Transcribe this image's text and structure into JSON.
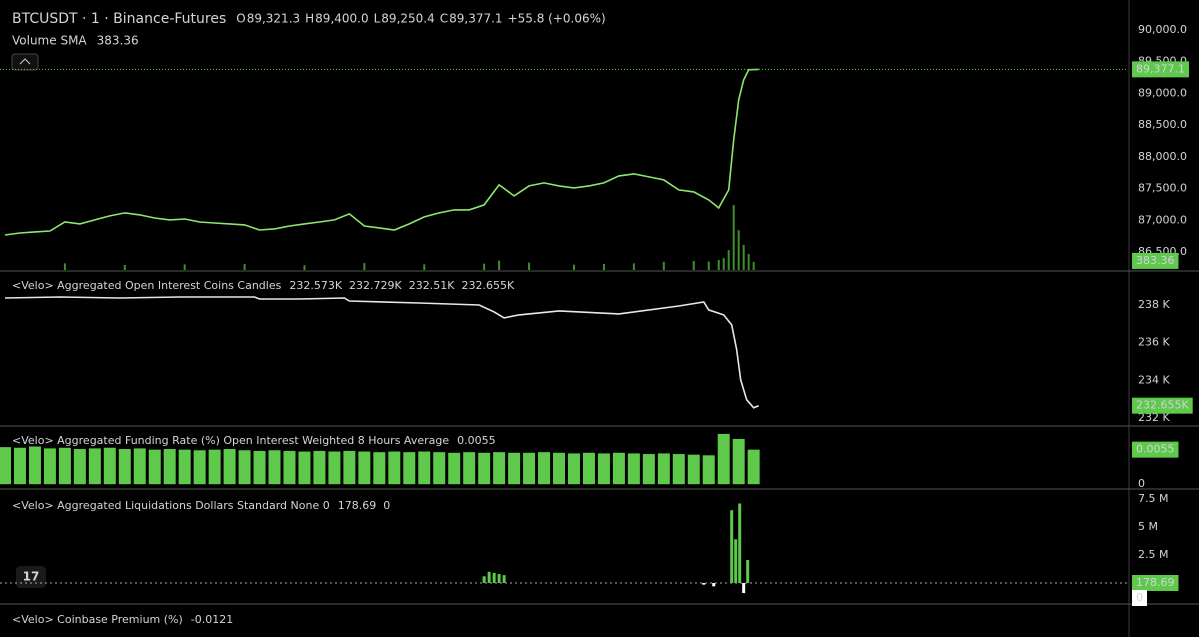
{
  "chart_data": [
    {
      "type": "line",
      "title": "BTCUSDT · 1 · Binance-Futures",
      "ohlc": [
        {
          "name": "O",
          "value": 89321.3,
          "label": "89,321.3"
        },
        {
          "name": "H",
          "value": 89400.0,
          "label": "89,400.0"
        },
        {
          "name": "L",
          "value": 89250.4,
          "label": "89,250.4"
        },
        {
          "name": "C",
          "value": 89377.1,
          "label": "89,377.1"
        }
      ],
      "change": "+55.8 (+0.06%)",
      "indicator": {
        "name": "Volume SMA",
        "value": 383.36
      },
      "xlim": [
        0,
        225
      ],
      "ylim": [
        86220,
        90390
      ],
      "yticks": [
        {
          "value": 86500,
          "label": "86,500.0"
        },
        {
          "value": 87000,
          "label": "87,000.0"
        },
        {
          "value": 87500,
          "label": "87,500.0"
        },
        {
          "value": 88000,
          "label": "88,000.0"
        },
        {
          "value": 88500,
          "label": "88,500.0"
        },
        {
          "value": 89000,
          "label": "89,000.0"
        },
        {
          "value": 89500,
          "label": "89,500.0"
        },
        {
          "value": 90000,
          "label": "90,000.0"
        }
      ],
      "series": [
        {
          "color": "#8ee66f",
          "x": [
            0,
            3,
            6,
            9,
            12,
            15,
            18,
            21,
            24,
            27,
            30,
            33,
            36,
            39,
            42,
            45,
            48,
            51,
            54,
            57,
            60,
            63,
            66,
            69,
            72,
            75,
            78,
            81,
            84,
            87,
            90,
            93,
            96,
            99,
            102,
            105,
            108,
            111,
            114,
            117,
            120,
            123,
            126,
            129,
            132,
            135,
            138,
            141,
            143,
            145,
            146,
            147,
            148,
            149,
            151
          ],
          "values": [
            86771,
            86803,
            86819,
            86834,
            86976,
            86945,
            87008,
            87071,
            87118,
            87087,
            87039,
            87008,
            87023,
            86976,
            86960,
            86945,
            86929,
            86850,
            86866,
            86913,
            86945,
            86976,
            87008,
            87102,
            86913,
            86882,
            86850,
            86945,
            87055,
            87118,
            87165,
            87165,
            87244,
            87559,
            87386,
            87543,
            87590,
            87543,
            87512,
            87543,
            87590,
            87700,
            87732,
            87685,
            87638,
            87480,
            87449,
            87323,
            87197,
            87480,
            88268,
            88898,
            89213,
            89370,
            89377.1
          ]
        }
      ],
      "volume": {
        "color": "#3f8f2e",
        "ylim": [
          0,
          20000
        ],
        "x": [
          12,
          24,
          36,
          48,
          60,
          72,
          84,
          96,
          99,
          105,
          114,
          120,
          126,
          132,
          138,
          141,
          143,
          144,
          145,
          146,
          147,
          148,
          149,
          150
        ],
        "values": [
          500,
          380,
          420,
          450,
          360,
          520,
          430,
          480,
          700,
          560,
          400,
          450,
          500,
          620,
          680,
          640,
          760,
          900,
          1500,
          4900,
          3000,
          1900,
          1200,
          600
        ]
      },
      "last_price": {
        "value": 89377.1,
        "label": "89,377.1"
      }
    },
    {
      "type": "line",
      "title": "<Velo> Aggregated Open Interest Coins Candles",
      "readouts": [
        "232.573K",
        "232.729K",
        "232.51K",
        "232.655K"
      ],
      "xlim": [
        0,
        225
      ],
      "ylim": [
        231629,
        239749
      ],
      "yticks": [
        {
          "value": 232000,
          "label": "232 K"
        },
        {
          "value": 234000,
          "label": "234 K"
        },
        {
          "value": 236000,
          "label": "236 K"
        },
        {
          "value": 238000,
          "label": "238 K"
        }
      ],
      "series": [
        {
          "color": "#e8e8e8",
          "x": [
            0,
            11,
            23,
            35,
            50,
            51,
            59,
            68,
            69,
            83,
            95,
            98,
            100,
            103,
            111,
            123,
            135,
            140,
            141,
            144,
            145.6,
            146.6,
            147.4,
            148.6,
            150,
            151
          ],
          "values": [
            238371,
            238424,
            238371,
            238424,
            238424,
            238318,
            238318,
            238371,
            238212,
            238106,
            238000,
            237629,
            237311,
            237470,
            237682,
            237523,
            237947,
            238159,
            237735,
            237470,
            236940,
            235615,
            234025,
            232965,
            232541,
            232655
          ]
        }
      ],
      "last_price": {
        "value": 232655,
        "label": "232.655K"
      }
    },
    {
      "type": "bar",
      "title": "<Velo> Aggregated Funding Rate (%) Open Interest Weighted 8 Hours Average",
      "readout": 0.0055,
      "xlim": [
        0,
        225
      ],
      "ylim": [
        -0.0006,
        0.0091
      ],
      "yticks": [
        0
      ],
      "series": [
        {
          "color": "#5ec94a",
          "x": [
            0,
            3,
            6,
            9,
            12,
            15,
            18,
            21,
            24,
            27,
            30,
            33,
            36,
            39,
            42,
            45,
            48,
            51,
            54,
            57,
            60,
            63,
            66,
            69,
            72,
            75,
            78,
            81,
            84,
            87,
            90,
            93,
            96,
            99,
            102,
            105,
            108,
            111,
            114,
            117,
            120,
            123,
            126,
            129,
            132,
            135,
            138,
            141,
            144,
            147,
            150
          ],
          "values": [
            0.0059,
            0.0058,
            0.006,
            0.0057,
            0.0058,
            0.0056,
            0.0057,
            0.0058,
            0.0056,
            0.0057,
            0.0055,
            0.0056,
            0.0055,
            0.0054,
            0.0055,
            0.0056,
            0.0054,
            0.0053,
            0.0054,
            0.0053,
            0.0052,
            0.0053,
            0.0052,
            0.0053,
            0.0052,
            0.0051,
            0.0052,
            0.0051,
            0.0052,
            0.0051,
            0.005,
            0.0051,
            0.005,
            0.0051,
            0.005,
            0.005,
            0.0051,
            0.005,
            0.0049,
            0.005,
            0.0049,
            0.005,
            0.0049,
            0.0048,
            0.0049,
            0.0048,
            0.0047,
            0.0046,
            0.008,
            0.0072,
            0.0055
          ]
        }
      ],
      "last_price": {
        "value": 0.0055
      }
    },
    {
      "type": "bar",
      "title": "<Velo> Aggregated Liquidations Dollars Standard None 0",
      "readouts": [
        178.69,
        0
      ],
      "xlim": [
        0,
        225
      ],
      "ylim": [
        -1786000,
        8125000
      ],
      "yticks": [
        {
          "value": 2500000,
          "label": "2.5 M"
        },
        {
          "value": 5000000,
          "label": "5 M"
        },
        {
          "value": 7500000,
          "label": "7.5 M"
        }
      ],
      "series": [
        {
          "color": "#5ec94a",
          "negative_color": "#ffffff",
          "x": [
            96,
            97,
            98,
            99,
            100,
            140,
            142,
            145.6,
            146.4,
            147.2,
            148,
            148.8
          ],
          "values": [
            600000,
            1000000,
            900000,
            800000,
            700000,
            -150000,
            -300000,
            6500000,
            3900000,
            7100000,
            -900000,
            2050000
          ]
        }
      ],
      "last_price": {
        "value": 178.69
      }
    },
    {
      "type": "none",
      "title": "<Velo> Coinbase Premium (%)",
      "readout": -0.0121
    }
  ]
}
